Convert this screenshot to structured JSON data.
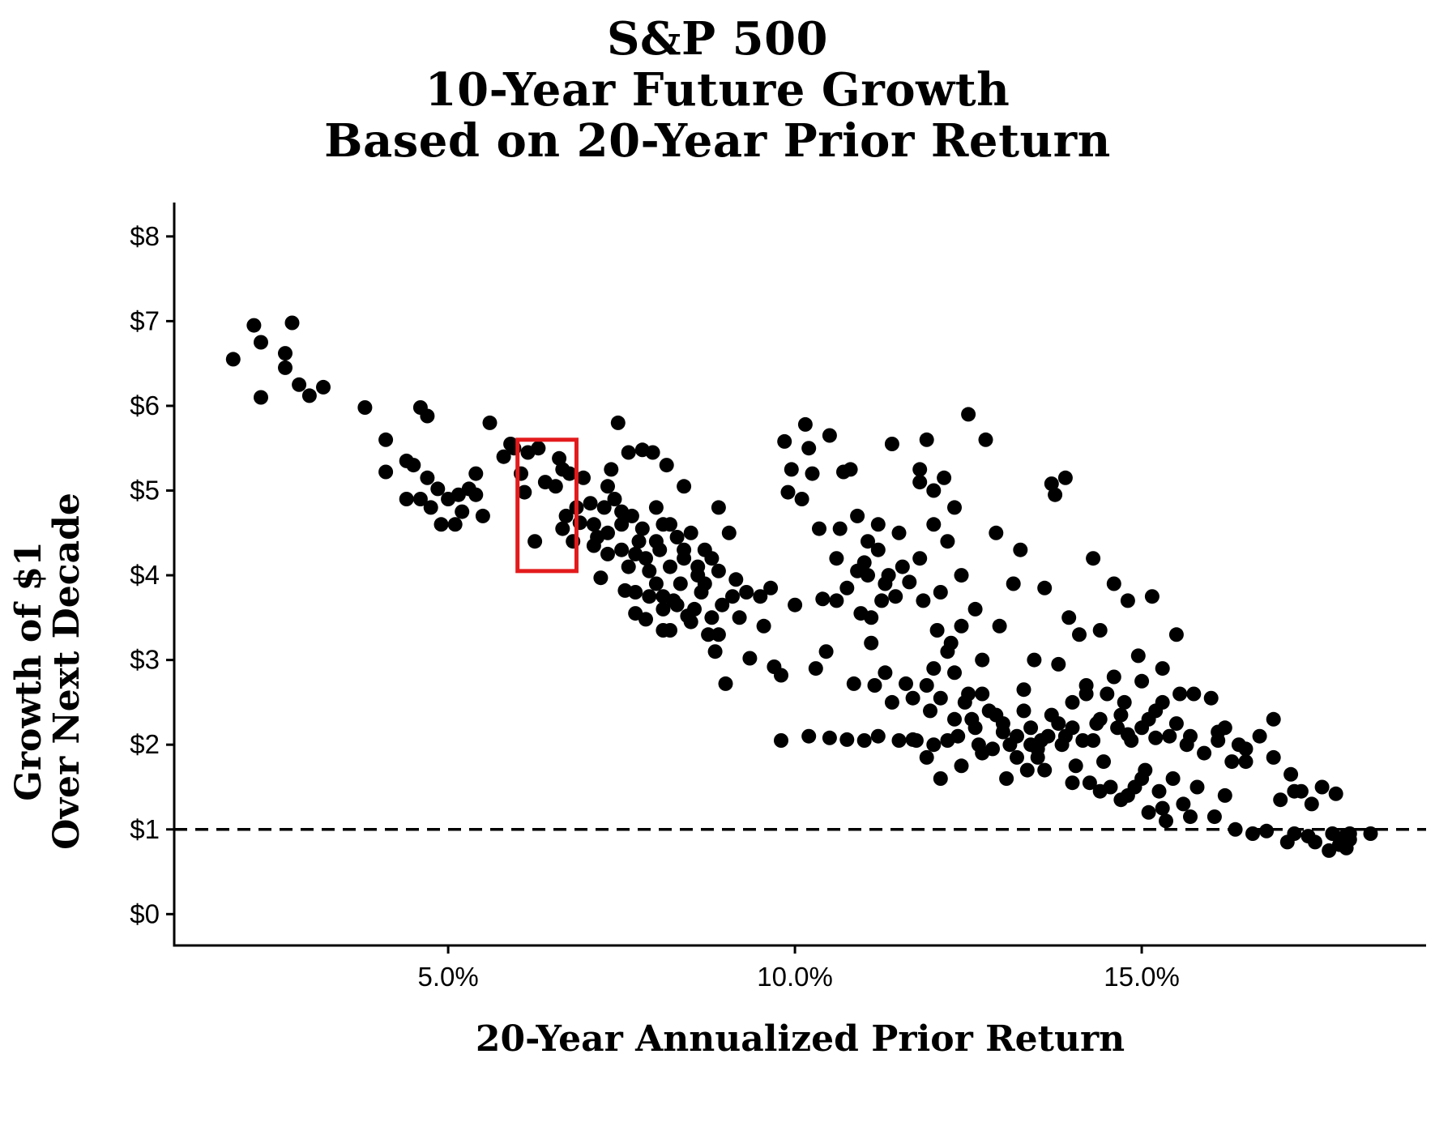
{
  "chart_data": {
    "type": "scatter",
    "title_lines": [
      "S&P 500",
      "10-Year Future Growth",
      "Based on 20-Year Prior Return"
    ],
    "xlabel": "20-Year Annualized Prior Return",
    "ylabel_lines": [
      "Growth of $1",
      "Over Next Decade"
    ],
    "x_ticks": [
      {
        "value": 5,
        "label": "5.0%"
      },
      {
        "value": 10,
        "label": "10.0%"
      },
      {
        "value": 15,
        "label": "15.0%"
      }
    ],
    "y_ticks": [
      {
        "value": 0,
        "label": "$0"
      },
      {
        "value": 1,
        "label": "$1"
      },
      {
        "value": 2,
        "label": "$2"
      },
      {
        "value": 3,
        "label": "$3"
      },
      {
        "value": 4,
        "label": "$4"
      },
      {
        "value": 5,
        "label": "$5"
      },
      {
        "value": 6,
        "label": "$6"
      },
      {
        "value": 7,
        "label": "$7"
      },
      {
        "value": 8,
        "label": "$8"
      }
    ],
    "xlim": [
      1.05,
      19.1
    ],
    "ylim": [
      -0.37,
      8.4
    ],
    "grid": false,
    "reference_line": {
      "y": 1,
      "style": "dashed",
      "color": "#000000"
    },
    "highlight_box": {
      "x": [
        6.0,
        6.85
      ],
      "y": [
        4.05,
        5.6
      ],
      "color": "#e31a1c"
    },
    "point_color": "#000000",
    "points": [
      [
        1.9,
        6.55
      ],
      [
        2.2,
        6.95
      ],
      [
        2.3,
        6.75
      ],
      [
        2.3,
        6.1
      ],
      [
        2.65,
        6.62
      ],
      [
        2.65,
        6.45
      ],
      [
        2.75,
        6.98
      ],
      [
        2.85,
        6.25
      ],
      [
        3.0,
        6.12
      ],
      [
        3.2,
        6.22
      ],
      [
        3.8,
        5.98
      ],
      [
        4.1,
        5.6
      ],
      [
        4.1,
        5.22
      ],
      [
        4.4,
        5.35
      ],
      [
        4.4,
        4.9
      ],
      [
        4.5,
        5.3
      ],
      [
        4.6,
        5.98
      ],
      [
        4.7,
        5.88
      ],
      [
        4.7,
        5.15
      ],
      [
        4.6,
        4.9
      ],
      [
        4.75,
        4.8
      ],
      [
        4.85,
        5.02
      ],
      [
        4.9,
        4.6
      ],
      [
        5.0,
        4.9
      ],
      [
        5.1,
        4.6
      ],
      [
        5.15,
        4.95
      ],
      [
        5.2,
        4.75
      ],
      [
        5.3,
        5.02
      ],
      [
        5.4,
        5.2
      ],
      [
        5.4,
        4.95
      ],
      [
        5.5,
        4.7
      ],
      [
        5.6,
        5.8
      ],
      [
        5.8,
        5.4
      ],
      [
        5.9,
        5.55
      ],
      [
        5.95,
        5.5
      ],
      [
        6.05,
        5.2
      ],
      [
        6.1,
        4.98
      ],
      [
        6.15,
        5.45
      ],
      [
        6.25,
        4.4
      ],
      [
        6.3,
        5.5
      ],
      [
        6.4,
        5.1
      ],
      [
        6.55,
        5.05
      ],
      [
        6.6,
        5.38
      ],
      [
        6.65,
        5.25
      ],
      [
        6.65,
        4.55
      ],
      [
        6.7,
        4.7
      ],
      [
        6.75,
        5.2
      ],
      [
        6.8,
        4.4
      ],
      [
        6.85,
        4.8
      ],
      [
        6.9,
        4.62
      ],
      [
        6.95,
        5.15
      ],
      [
        7.05,
        4.85
      ],
      [
        7.1,
        4.6
      ],
      [
        7.15,
        4.45
      ],
      [
        7.2,
        3.97
      ],
      [
        7.25,
        4.8
      ],
      [
        7.3,
        5.05
      ],
      [
        7.3,
        4.25
      ],
      [
        7.35,
        5.25
      ],
      [
        7.4,
        4.9
      ],
      [
        7.45,
        5.8
      ],
      [
        7.5,
        4.6
      ],
      [
        7.5,
        4.3
      ],
      [
        7.55,
        3.82
      ],
      [
        7.6,
        5.45
      ],
      [
        7.6,
        4.1
      ],
      [
        7.65,
        4.7
      ],
      [
        7.7,
        3.55
      ],
      [
        7.7,
        3.8
      ],
      [
        7.75,
        4.4
      ],
      [
        7.8,
        5.48
      ],
      [
        7.8,
        4.55
      ],
      [
        7.85,
        4.2
      ],
      [
        7.85,
        3.48
      ],
      [
        7.9,
        3.75
      ],
      [
        7.95,
        5.45
      ],
      [
        8.0,
        4.8
      ],
      [
        8.0,
        3.9
      ],
      [
        8.05,
        4.3
      ],
      [
        8.1,
        3.6
      ],
      [
        8.1,
        4.6
      ],
      [
        8.15,
        5.3
      ],
      [
        8.2,
        4.1
      ],
      [
        8.2,
        3.35
      ],
      [
        8.25,
        3.7
      ],
      [
        8.3,
        4.45
      ],
      [
        8.35,
        3.9
      ],
      [
        8.4,
        5.05
      ],
      [
        8.4,
        4.2
      ],
      [
        8.45,
        3.52
      ],
      [
        8.5,
        4.5
      ],
      [
        8.55,
        3.6
      ],
      [
        8.6,
        4.0
      ],
      [
        8.65,
        3.8
      ],
      [
        8.7,
        4.3
      ],
      [
        8.75,
        3.3
      ],
      [
        8.8,
        4.2
      ],
      [
        8.8,
        3.5
      ],
      [
        8.85,
        3.1
      ],
      [
        8.9,
        4.8
      ],
      [
        8.9,
        4.05
      ],
      [
        8.95,
        3.65
      ],
      [
        9.0,
        2.72
      ],
      [
        9.05,
        4.5
      ],
      [
        9.1,
        3.75
      ],
      [
        9.15,
        3.95
      ],
      [
        9.2,
        3.5
      ],
      [
        9.3,
        3.8
      ],
      [
        9.35,
        3.02
      ],
      [
        9.5,
        3.75
      ],
      [
        9.55,
        3.4
      ],
      [
        9.65,
        3.85
      ],
      [
        9.7,
        2.92
      ],
      [
        9.8,
        2.82
      ],
      [
        9.85,
        5.58
      ],
      [
        9.9,
        4.98
      ],
      [
        9.95,
        5.25
      ],
      [
        10.0,
        3.65
      ],
      [
        10.1,
        4.9
      ],
      [
        10.15,
        5.78
      ],
      [
        10.2,
        5.5
      ],
      [
        10.25,
        5.2
      ],
      [
        10.3,
        2.9
      ],
      [
        10.35,
        4.55
      ],
      [
        10.4,
        3.72
      ],
      [
        10.45,
        3.1
      ],
      [
        10.5,
        5.65
      ],
      [
        10.6,
        3.7
      ],
      [
        10.6,
        4.2
      ],
      [
        10.65,
        4.55
      ],
      [
        10.7,
        5.22
      ],
      [
        10.75,
        3.85
      ],
      [
        10.8,
        5.25
      ],
      [
        10.85,
        2.72
      ],
      [
        10.9,
        4.05
      ],
      [
        10.95,
        3.55
      ],
      [
        11.0,
        4.15
      ],
      [
        11.0,
        2.05
      ],
      [
        11.05,
        4.4
      ],
      [
        11.1,
        3.2
      ],
      [
        11.15,
        2.7
      ],
      [
        11.2,
        4.3
      ],
      [
        11.25,
        3.7
      ],
      [
        11.3,
        2.85
      ],
      [
        11.35,
        4.0
      ],
      [
        11.4,
        2.5
      ],
      [
        11.45,
        3.75
      ],
      [
        11.5,
        2.05
      ],
      [
        11.55,
        4.1
      ],
      [
        11.6,
        2.72
      ],
      [
        11.65,
        3.92
      ],
      [
        11.7,
        2.55
      ],
      [
        11.75,
        2.05
      ],
      [
        11.8,
        4.2
      ],
      [
        11.85,
        3.7
      ],
      [
        11.9,
        2.7
      ],
      [
        11.95,
        2.4
      ],
      [
        12.0,
        2.0
      ],
      [
        12.05,
        3.35
      ],
      [
        12.1,
        2.55
      ],
      [
        12.15,
        5.15
      ],
      [
        12.2,
        4.4
      ],
      [
        12.25,
        3.2
      ],
      [
        12.3,
        2.85
      ],
      [
        12.35,
        2.1
      ],
      [
        12.4,
        4.0
      ],
      [
        12.45,
        2.5
      ],
      [
        12.5,
        5.9
      ],
      [
        12.55,
        2.3
      ],
      [
        12.6,
        3.6
      ],
      [
        12.65,
        2.0
      ],
      [
        12.7,
        3.0
      ],
      [
        12.75,
        5.6
      ],
      [
        12.8,
        2.4
      ],
      [
        12.85,
        1.95
      ],
      [
        12.9,
        4.5
      ],
      [
        12.95,
        3.4
      ],
      [
        13.0,
        2.25
      ],
      [
        13.05,
        1.6
      ],
      [
        13.1,
        2.0
      ],
      [
        13.15,
        3.9
      ],
      [
        13.2,
        2.1
      ],
      [
        13.25,
        4.3
      ],
      [
        13.3,
        2.65
      ],
      [
        13.35,
        1.7
      ],
      [
        13.4,
        2.2
      ],
      [
        13.45,
        3.0
      ],
      [
        13.5,
        1.85
      ],
      [
        13.55,
        2.05
      ],
      [
        13.6,
        3.85
      ],
      [
        13.65,
        2.1
      ],
      [
        13.7,
        5.08
      ],
      [
        13.75,
        4.95
      ],
      [
        13.8,
        2.95
      ],
      [
        13.85,
        2.0
      ],
      [
        13.9,
        5.15
      ],
      [
        13.95,
        3.5
      ],
      [
        14.0,
        2.2
      ],
      [
        14.05,
        1.75
      ],
      [
        14.1,
        3.3
      ],
      [
        14.15,
        2.05
      ],
      [
        14.2,
        2.6
      ],
      [
        14.25,
        1.55
      ],
      [
        14.3,
        4.2
      ],
      [
        14.35,
        2.25
      ],
      [
        14.4,
        3.35
      ],
      [
        14.45,
        1.8
      ],
      [
        14.5,
        2.6
      ],
      [
        14.55,
        1.5
      ],
      [
        14.6,
        3.9
      ],
      [
        14.65,
        2.2
      ],
      [
        14.7,
        1.35
      ],
      [
        14.75,
        2.5
      ],
      [
        14.8,
        3.7
      ],
      [
        14.85,
        2.05
      ],
      [
        14.9,
        1.5
      ],
      [
        14.95,
        3.05
      ],
      [
        15.0,
        2.2
      ],
      [
        15.05,
        1.7
      ],
      [
        15.1,
        1.2
      ],
      [
        15.15,
        3.75
      ],
      [
        15.2,
        2.4
      ],
      [
        15.25,
        1.45
      ],
      [
        15.3,
        2.9
      ],
      [
        15.35,
        1.1
      ],
      [
        15.4,
        2.1
      ],
      [
        15.45,
        1.6
      ],
      [
        15.5,
        3.3
      ],
      [
        15.55,
        2.6
      ],
      [
        15.6,
        1.3
      ],
      [
        15.65,
        2.0
      ],
      [
        15.7,
        1.15
      ],
      [
        15.75,
        2.6
      ],
      [
        15.8,
        1.5
      ],
      [
        15.9,
        1.9
      ],
      [
        16.0,
        2.55
      ],
      [
        16.05,
        1.15
      ],
      [
        16.1,
        2.15
      ],
      [
        16.2,
        1.4
      ],
      [
        16.3,
        1.8
      ],
      [
        16.35,
        1.0
      ],
      [
        16.4,
        2.0
      ],
      [
        16.5,
        1.8
      ],
      [
        16.6,
        0.95
      ],
      [
        16.7,
        2.1
      ],
      [
        16.8,
        0.98
      ],
      [
        16.9,
        2.3
      ],
      [
        17.0,
        1.35
      ],
      [
        17.1,
        0.85
      ],
      [
        17.15,
        1.65
      ],
      [
        17.2,
        0.95
      ],
      [
        17.3,
        1.45
      ],
      [
        17.4,
        0.92
      ],
      [
        17.45,
        1.3
      ],
      [
        17.5,
        0.85
      ],
      [
        17.6,
        1.5
      ],
      [
        17.7,
        0.75
      ],
      [
        17.75,
        0.95
      ],
      [
        17.8,
        1.42
      ],
      [
        17.85,
        0.82
      ],
      [
        17.9,
        0.9
      ],
      [
        17.95,
        0.78
      ],
      [
        18.0,
        0.88
      ],
      [
        18.0,
        0.95
      ],
      [
        18.3,
        0.95
      ],
      [
        9.8,
        2.05
      ],
      [
        10.2,
        2.1
      ],
      [
        10.5,
        2.08
      ],
      [
        10.75,
        2.06
      ],
      [
        11.2,
        2.1
      ],
      [
        11.7,
        2.06
      ],
      [
        12.2,
        2.05
      ],
      [
        12.6,
        2.2
      ],
      [
        13.0,
        2.15
      ],
      [
        13.4,
        2.0
      ],
      [
        13.9,
        2.1
      ],
      [
        14.3,
        2.05
      ],
      [
        14.8,
        2.12
      ],
      [
        15.2,
        2.08
      ],
      [
        15.7,
        2.1
      ],
      [
        16.1,
        2.05
      ],
      [
        11.9,
        1.85
      ],
      [
        12.1,
        1.6
      ],
      [
        12.4,
        1.75
      ],
      [
        12.7,
        1.9
      ],
      [
        13.2,
        1.85
      ],
      [
        13.6,
        1.7
      ],
      [
        14.0,
        1.55
      ],
      [
        14.4,
        1.45
      ],
      [
        14.8,
        1.4
      ],
      [
        15.0,
        1.6
      ],
      [
        15.3,
        1.25
      ],
      [
        12.3,
        2.3
      ],
      [
        12.5,
        2.6
      ],
      [
        12.7,
        2.6
      ],
      [
        12.9,
        2.35
      ],
      [
        13.3,
        2.4
      ],
      [
        13.7,
        2.35
      ],
      [
        14.0,
        2.5
      ],
      [
        14.4,
        2.3
      ],
      [
        14.7,
        2.35
      ],
      [
        15.1,
        2.3
      ],
      [
        15.5,
        2.25
      ],
      [
        12.0,
        2.9
      ],
      [
        12.2,
        3.1
      ],
      [
        12.4,
        3.4
      ],
      [
        12.1,
        3.8
      ],
      [
        12.0,
        4.6
      ],
      [
        12.3,
        4.8
      ],
      [
        11.8,
        5.1
      ],
      [
        11.9,
        5.6
      ],
      [
        12.0,
        5.0
      ],
      [
        11.8,
        5.25
      ],
      [
        11.4,
        5.55
      ],
      [
        11.2,
        4.6
      ],
      [
        11.05,
        4.0
      ],
      [
        10.9,
        4.7
      ],
      [
        11.1,
        3.5
      ],
      [
        11.3,
        3.9
      ],
      [
        11.5,
        4.5
      ],
      [
        8.1,
        3.35
      ],
      [
        8.3,
        3.65
      ],
      [
        8.5,
        3.45
      ],
      [
        8.7,
        3.9
      ],
      [
        8.9,
        3.3
      ],
      [
        7.9,
        4.05
      ],
      [
        7.7,
        4.25
      ],
      [
        7.5,
        4.75
      ],
      [
        7.3,
        4.5
      ],
      [
        7.1,
        4.35
      ],
      [
        8.2,
        4.6
      ],
      [
        8.4,
        4.3
      ],
      [
        8.6,
        4.1
      ],
      [
        8.1,
        3.75
      ],
      [
        8.0,
        4.4
      ],
      [
        13.5,
        1.95
      ],
      [
        13.8,
        2.25
      ],
      [
        14.2,
        2.7
      ],
      [
        14.6,
        2.8
      ],
      [
        15.0,
        2.75
      ],
      [
        15.3,
        2.5
      ],
      [
        16.2,
        2.2
      ],
      [
        16.5,
        1.95
      ],
      [
        16.9,
        1.85
      ],
      [
        17.2,
        1.45
      ]
    ]
  }
}
